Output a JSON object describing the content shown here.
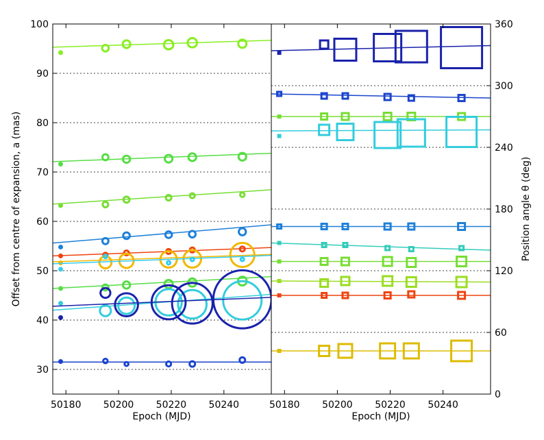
{
  "chart_data": [
    {
      "type": "scatter",
      "panel": "left",
      "xlabel": "Epoch (MJD)",
      "ylabel": "Offset from centre of expansion, a (mas)",
      "xlim": [
        50175,
        50258
      ],
      "ylim": [
        25,
        100
      ],
      "xticks": [
        "50180",
        "50200",
        "50220",
        "50240"
      ],
      "xtick_values": [
        50180,
        50200,
        50220,
        50240
      ],
      "yticks": [
        "30",
        "40",
        "50",
        "60",
        "70",
        "80",
        "90",
        "100"
      ],
      "ytick_values": [
        30,
        40,
        50,
        60,
        70,
        80,
        90,
        100
      ],
      "grid": "horizontal dotted",
      "series": [
        {
          "color": "#88ee22",
          "fit": [
            95.3,
            96.7
          ],
          "points": [
            {
              "x": 50178,
              "y": 94.2,
              "size": 0.25
            },
            {
              "x": 50195,
              "y": 95.1,
              "size": 0.6
            },
            {
              "x": 50203,
              "y": 95.9,
              "size": 0.7
            },
            {
              "x": 50219,
              "y": 95.8,
              "size": 0.85
            },
            {
              "x": 50228,
              "y": 96.2,
              "size": 0.85
            },
            {
              "x": 50247,
              "y": 96.0,
              "size": 0.75
            }
          ]
        },
        {
          "color": "#55dd44",
          "fit": [
            72.1,
            73.8
          ],
          "points": [
            {
              "x": 50178,
              "y": 71.6,
              "size": 0.25
            },
            {
              "x": 50195,
              "y": 73.0,
              "size": 0.55
            },
            {
              "x": 50203,
              "y": 72.6,
              "size": 0.65
            },
            {
              "x": 50219,
              "y": 72.7,
              "size": 0.7
            },
            {
              "x": 50228,
              "y": 73.0,
              "size": 0.7
            },
            {
              "x": 50247,
              "y": 73.1,
              "size": 0.7
            }
          ]
        },
        {
          "color": "#77dd33",
          "fit": [
            63.5,
            66.4
          ],
          "points": [
            {
              "x": 50178,
              "y": 63.2,
              "size": 0.2
            },
            {
              "x": 50195,
              "y": 63.4,
              "size": 0.5
            },
            {
              "x": 50203,
              "y": 64.4,
              "size": 0.55
            },
            {
              "x": 50219,
              "y": 64.8,
              "size": 0.5
            },
            {
              "x": 50228,
              "y": 65.2,
              "size": 0.45
            },
            {
              "x": 50247,
              "y": 65.4,
              "size": 0.4
            }
          ]
        },
        {
          "color": "#1e7fd8",
          "fit": [
            55.6,
            59.3
          ],
          "points": [
            {
              "x": 50178,
              "y": 54.8,
              "size": 0.25
            },
            {
              "x": 50195,
              "y": 56.0,
              "size": 0.55
            },
            {
              "x": 50203,
              "y": 57.1,
              "size": 0.6
            },
            {
              "x": 50219,
              "y": 57.3,
              "size": 0.6
            },
            {
              "x": 50228,
              "y": 57.4,
              "size": 0.6
            },
            {
              "x": 50247,
              "y": 57.9,
              "size": 0.65
            }
          ]
        },
        {
          "color": "#ee4410",
          "fit": [
            53.0,
            54.7
          ],
          "points": [
            {
              "x": 50178,
              "y": 53.0,
              "size": 0.2
            },
            {
              "x": 50195,
              "y": 53.2,
              "size": 0.4
            },
            {
              "x": 50203,
              "y": 53.6,
              "size": 0.45
            },
            {
              "x": 50219,
              "y": 53.9,
              "size": 0.45
            },
            {
              "x": 50228,
              "y": 54.2,
              "size": 0.45
            },
            {
              "x": 50247,
              "y": 54.4,
              "size": 0.45
            }
          ]
        },
        {
          "color": "#f2b800",
          "fit": [
            51.8,
            53.3
          ],
          "points": [
            {
              "x": 50178,
              "y": 51.6,
              "size": 0.2
            },
            {
              "x": 50195,
              "y": 51.7,
              "size": 1.1
            },
            {
              "x": 50203,
              "y": 52.0,
              "size": 1.3
            },
            {
              "x": 50219,
              "y": 52.3,
              "size": 1.5
            },
            {
              "x": 50228,
              "y": 52.4,
              "size": 1.6
            },
            {
              "x": 50247,
              "y": 53.2,
              "size": 2.2
            }
          ]
        },
        {
          "color": "#33ccee",
          "fit": [
            51.4,
            53.1
          ],
          "points": [
            {
              "x": 50178,
              "y": 50.3,
              "size": 0.2
            },
            {
              "x": 50195,
              "y": 52.9,
              "size": 0.3
            },
            {
              "x": 50219,
              "y": 51.6,
              "size": 0.3
            },
            {
              "x": 50228,
              "y": 52.3,
              "size": 0.3
            },
            {
              "x": 50247,
              "y": 52.3,
              "size": 0.3
            }
          ]
        },
        {
          "color": "#55dd44",
          "fit": [
            46.4,
            48.8
          ],
          "points": [
            {
              "x": 50178,
              "y": 46.4,
              "size": 0.2
            },
            {
              "x": 50195,
              "y": 46.6,
              "size": 0.55
            },
            {
              "x": 50203,
              "y": 47.1,
              "size": 0.65
            },
            {
              "x": 50219,
              "y": 47.3,
              "size": 0.75
            },
            {
              "x": 50228,
              "y": 47.6,
              "size": 0.75
            },
            {
              "x": 50247,
              "y": 47.9,
              "size": 0.8
            }
          ]
        },
        {
          "color": "#33ccdd",
          "fit": [
            42.0,
            45.2
          ],
          "points": [
            {
              "x": 50178,
              "y": 43.4,
              "size": 0.2
            },
            {
              "x": 50195,
              "y": 41.9,
              "size": 1.0
            },
            {
              "x": 50203,
              "y": 42.9,
              "size": 1.5
            },
            {
              "x": 50219,
              "y": 43.6,
              "size": 2.4
            },
            {
              "x": 50228,
              "y": 43.2,
              "size": 2.6
            },
            {
              "x": 50247,
              "y": 44.0,
              "size": 3.5
            }
          ]
        },
        {
          "color": "#1a22aa",
          "fit": [
            42.8,
            44.6
          ],
          "points": [
            {
              "x": 50178,
              "y": 40.5,
              "size": 0.2
            },
            {
              "x": 50195,
              "y": 45.5,
              "size": 0.9
            },
            {
              "x": 50203,
              "y": 43.1,
              "size": 2.1
            },
            {
              "x": 50219,
              "y": 43.6,
              "size": 3.1
            },
            {
              "x": 50228,
              "y": 43.4,
              "size": 3.7
            },
            {
              "x": 50247,
              "y": 44.2,
              "size": 5.3
            }
          ]
        },
        {
          "color": "#1a44cc",
          "fit": [
            31.5,
            31.5
          ],
          "points": [
            {
              "x": 50178,
              "y": 31.6,
              "size": 0.25
            },
            {
              "x": 50195,
              "y": 31.7,
              "size": 0.4
            },
            {
              "x": 50203,
              "y": 31.1,
              "size": 0.35
            },
            {
              "x": 50219,
              "y": 31.1,
              "size": 0.45
            },
            {
              "x": 50228,
              "y": 31.1,
              "size": 0.5
            },
            {
              "x": 50247,
              "y": 31.9,
              "size": 0.5
            }
          ]
        }
      ]
    },
    {
      "type": "scatter",
      "panel": "right",
      "xlabel": "Epoch (MJD)",
      "ylabel": "Position angle θ (deg)",
      "xlim": [
        50175,
        50258
      ],
      "ylim": [
        0,
        360
      ],
      "xticks": [
        "50180",
        "50200",
        "50220",
        "50240"
      ],
      "xtick_values": [
        50180,
        50200,
        50220,
        50240
      ],
      "yticks": [
        "0",
        "60",
        "120",
        "180",
        "240",
        "300",
        "360"
      ],
      "ytick_values": [
        0,
        60,
        120,
        180,
        240,
        300,
        360
      ],
      "grid": "horizontal dotted",
      "series": [
        {
          "color": "#1a22aa",
          "fit": [
            334,
            339
          ],
          "points": [
            {
              "x": 50178,
              "y": 332,
              "size": 0.2
            },
            {
              "x": 50195,
              "y": 340,
              "size": 0.6
            },
            {
              "x": 50203,
              "y": 335,
              "size": 1.6
            },
            {
              "x": 50219,
              "y": 337,
              "size": 2.0
            },
            {
              "x": 50228,
              "y": 338,
              "size": 2.3
            },
            {
              "x": 50247,
              "y": 337,
              "size": 3.0
            }
          ]
        },
        {
          "color": "#1a44cc",
          "fit": [
            292,
            288
          ],
          "points": [
            {
              "x": 50178,
              "y": 292,
              "size": 0.3
            },
            {
              "x": 50195,
              "y": 290,
              "size": 0.4
            },
            {
              "x": 50203,
              "y": 290,
              "size": 0.4
            },
            {
              "x": 50219,
              "y": 289,
              "size": 0.45
            },
            {
              "x": 50228,
              "y": 288,
              "size": 0.4
            },
            {
              "x": 50247,
              "y": 288,
              "size": 0.45
            }
          ]
        },
        {
          "color": "#77dd33",
          "fit": [
            270,
            270
          ],
          "points": [
            {
              "x": 50178,
              "y": 270,
              "size": 0.25
            },
            {
              "x": 50195,
              "y": 270,
              "size": 0.45
            },
            {
              "x": 50203,
              "y": 270,
              "size": 0.5
            },
            {
              "x": 50219,
              "y": 270,
              "size": 0.55
            },
            {
              "x": 50228,
              "y": 270,
              "size": 0.55
            },
            {
              "x": 50247,
              "y": 270,
              "size": 0.5
            }
          ]
        },
        {
          "color": "#33ccdd",
          "fit": [
            256,
            257
          ],
          "points": [
            {
              "x": 50178,
              "y": 251,
              "size": 0.2
            },
            {
              "x": 50195,
              "y": 257,
              "size": 0.75
            },
            {
              "x": 50203,
              "y": 255,
              "size": 1.2
            },
            {
              "x": 50219,
              "y": 252,
              "size": 1.9
            },
            {
              "x": 50228,
              "y": 254,
              "size": 2.0
            },
            {
              "x": 50247,
              "y": 255,
              "size": 2.2
            }
          ]
        },
        {
          "color": "#1e7fd8",
          "fit": [
            163,
            163
          ],
          "points": [
            {
              "x": 50178,
              "y": 163,
              "size": 0.3
            },
            {
              "x": 50195,
              "y": 163,
              "size": 0.4
            },
            {
              "x": 50203,
              "y": 163,
              "size": 0.4
            },
            {
              "x": 50219,
              "y": 163,
              "size": 0.45
            },
            {
              "x": 50228,
              "y": 163,
              "size": 0.45
            },
            {
              "x": 50247,
              "y": 163,
              "size": 0.5
            }
          ]
        },
        {
          "color": "#33ccbb",
          "fit": [
            147,
            140
          ],
          "points": [
            {
              "x": 50178,
              "y": 147,
              "size": 0.2
            },
            {
              "x": 50195,
              "y": 145,
              "size": 0.3
            },
            {
              "x": 50203,
              "y": 145,
              "size": 0.3
            },
            {
              "x": 50219,
              "y": 142,
              "size": 0.3
            },
            {
              "x": 50228,
              "y": 141,
              "size": 0.3
            },
            {
              "x": 50247,
              "y": 142,
              "size": 0.3
            }
          ]
        },
        {
          "color": "#77dd33",
          "fit": [
            129,
            129
          ],
          "points": [
            {
              "x": 50178,
              "y": 129,
              "size": 0.25
            },
            {
              "x": 50195,
              "y": 129,
              "size": 0.5
            },
            {
              "x": 50203,
              "y": 129,
              "size": 0.55
            },
            {
              "x": 50219,
              "y": 129,
              "size": 0.65
            },
            {
              "x": 50228,
              "y": 128,
              "size": 0.65
            },
            {
              "x": 50247,
              "y": 129,
              "size": 0.7
            }
          ]
        },
        {
          "color": "#99dd22",
          "fit": [
            110,
            109
          ],
          "points": [
            {
              "x": 50178,
              "y": 110,
              "size": 0.25
            },
            {
              "x": 50195,
              "y": 108,
              "size": 0.55
            },
            {
              "x": 50203,
              "y": 110,
              "size": 0.6
            },
            {
              "x": 50219,
              "y": 110,
              "size": 0.7
            },
            {
              "x": 50228,
              "y": 109,
              "size": 0.7
            },
            {
              "x": 50247,
              "y": 109,
              "size": 0.75
            }
          ]
        },
        {
          "color": "#ee4410",
          "fit": [
            96,
            96
          ],
          "points": [
            {
              "x": 50178,
              "y": 96,
              "size": 0.25
            },
            {
              "x": 50195,
              "y": 96,
              "size": 0.35
            },
            {
              "x": 50203,
              "y": 96,
              "size": 0.4
            },
            {
              "x": 50219,
              "y": 96,
              "size": 0.45
            },
            {
              "x": 50228,
              "y": 97,
              "size": 0.45
            },
            {
              "x": 50247,
              "y": 96,
              "size": 0.5
            }
          ]
        },
        {
          "color": "#ddbb00",
          "fit": [
            42,
            42
          ],
          "points": [
            {
              "x": 50178,
              "y": 42,
              "size": 0.2
            },
            {
              "x": 50195,
              "y": 42,
              "size": 0.75
            },
            {
              "x": 50203,
              "y": 42,
              "size": 1.0
            },
            {
              "x": 50219,
              "y": 42,
              "size": 1.1
            },
            {
              "x": 50228,
              "y": 42,
              "size": 1.1
            },
            {
              "x": 50247,
              "y": 42,
              "size": 1.5
            }
          ]
        }
      ]
    }
  ]
}
